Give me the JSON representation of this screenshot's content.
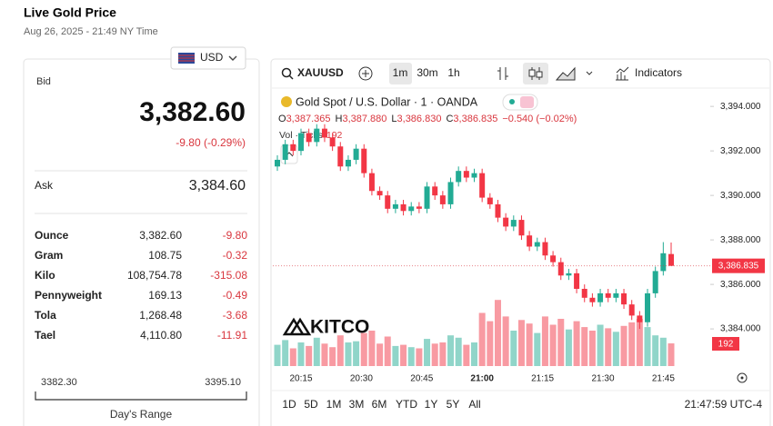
{
  "header": {
    "title": "Live Gold Price",
    "timestamp": "Aug 26, 2025 - 21:49 NY Time"
  },
  "currency": "USD",
  "quote": {
    "bid_label": "Bid",
    "bid": "3,382.60",
    "change": "-9.80 (-0.29%)",
    "ask_label": "Ask",
    "ask": "3,384.60"
  },
  "units": [
    [
      "Ounce",
      "3,382.60",
      "-9.80"
    ],
    [
      "Gram",
      "108.75",
      "-0.32"
    ],
    [
      "Kilo",
      "108,754.78",
      "-315.08"
    ],
    [
      "Pennyweight",
      "169.13",
      "-0.49"
    ],
    [
      "Tola",
      "1,268.48",
      "-3.68"
    ],
    [
      "Tael",
      "4,110.80",
      "-11.91"
    ]
  ],
  "range": {
    "low": "3382.30",
    "high": "3395.10",
    "label": "Day's Range"
  },
  "chart": {
    "symbol": "XAUUSD",
    "intervals": [
      "1m",
      "30m",
      "1h"
    ],
    "indicators": "Indicators",
    "legend": "Gold Spot / U.S. Dollar · 1 · OANDA",
    "ohlc": [
      {
        "key": "O",
        "value": "3,387.365"
      },
      {
        "key": "H",
        "value": "3,387.880"
      },
      {
        "key": "L",
        "value": "3,386.830"
      },
      {
        "key": "C",
        "value": "3,386.835"
      }
    ],
    "change": "−0.540 (−0.02%)",
    "volume_label": "Vol · Ticks",
    "volume_value": "192",
    "logo": "KITCO",
    "ylim": [
      3383.0,
      3394.7
    ],
    "yticks": [
      {
        "value": 3394,
        "label": "3,394.000"
      },
      {
        "value": 3392,
        "label": "3,392.000"
      },
      {
        "value": 3390,
        "label": "3,390.000"
      },
      {
        "value": 3388,
        "label": "3,388.000"
      },
      {
        "value": 3386,
        "label": "3,386.000"
      },
      {
        "value": 3384,
        "label": "3,384.000"
      }
    ],
    "price_tag": "3,386.835",
    "volume_tag": "192",
    "time_labels": [
      "20:15",
      "20:30",
      "20:45",
      "21:00",
      "21:15",
      "21:30",
      "21:45"
    ],
    "candles": [
      [
        3391.3,
        3391.8,
        3391.1,
        3391.6
      ],
      [
        3391.6,
        3392.5,
        3391.4,
        3392.3
      ],
      [
        3392.3,
        3392.5,
        3391.8,
        3392.0
      ],
      [
        3392.0,
        3393.0,
        3391.8,
        3392.8
      ],
      [
        3392.8,
        3393.0,
        3392.2,
        3392.4
      ],
      [
        3392.4,
        3393.2,
        3392.2,
        3393.0
      ],
      [
        3393.0,
        3393.2,
        3392.4,
        3392.6
      ],
      [
        3392.6,
        3392.8,
        3392.0,
        3392.2
      ],
      [
        3392.2,
        3392.4,
        3391.1,
        3391.3
      ],
      [
        3391.3,
        3391.8,
        3391.1,
        3391.6
      ],
      [
        3391.6,
        3392.3,
        3391.4,
        3392.1
      ],
      [
        3392.1,
        3392.3,
        3390.8,
        3391.0
      ],
      [
        3391.0,
        3391.2,
        3390.0,
        3390.2
      ],
      [
        3390.2,
        3390.4,
        3389.8,
        3390.0
      ],
      [
        3390.0,
        3390.2,
        3389.2,
        3389.4
      ],
      [
        3389.4,
        3389.8,
        3389.2,
        3389.6
      ],
      [
        3389.6,
        3389.8,
        3389.1,
        3389.3
      ],
      [
        3389.3,
        3389.7,
        3389.1,
        3389.5
      ],
      [
        3389.5,
        3389.7,
        3389.2,
        3389.4
      ],
      [
        3389.4,
        3390.6,
        3389.2,
        3390.4
      ],
      [
        3390.4,
        3390.6,
        3389.8,
        3390.0
      ],
      [
        3390.0,
        3390.2,
        3389.4,
        3389.6
      ],
      [
        3389.6,
        3390.8,
        3389.4,
        3390.6
      ],
      [
        3390.6,
        3391.3,
        3390.4,
        3391.1
      ],
      [
        3391.1,
        3391.3,
        3390.6,
        3390.8
      ],
      [
        3390.8,
        3391.2,
        3390.6,
        3391.0
      ],
      [
        3391.0,
        3391.2,
        3389.7,
        3389.9
      ],
      [
        3389.9,
        3390.1,
        3389.4,
        3389.6
      ],
      [
        3389.6,
        3389.8,
        3388.8,
        3389.0
      ],
      [
        3389.0,
        3389.2,
        3388.4,
        3388.6
      ],
      [
        3388.6,
        3389.1,
        3388.4,
        3388.9
      ],
      [
        3388.9,
        3389.1,
        3388.0,
        3388.2
      ],
      [
        3388.2,
        3388.4,
        3387.5,
        3387.7
      ],
      [
        3387.7,
        3388.1,
        3387.5,
        3387.9
      ],
      [
        3387.9,
        3388.1,
        3387.1,
        3387.3
      ],
      [
        3387.3,
        3387.5,
        3386.8,
        3387.0
      ],
      [
        3387.0,
        3387.2,
        3386.2,
        3386.4
      ],
      [
        3386.4,
        3386.7,
        3386.2,
        3386.5
      ],
      [
        3386.5,
        3386.7,
        3385.6,
        3385.8
      ],
      [
        3385.8,
        3386.0,
        3385.2,
        3385.4
      ],
      [
        3385.4,
        3385.6,
        3385.0,
        3385.2
      ],
      [
        3385.2,
        3385.8,
        3385.0,
        3385.6
      ],
      [
        3385.6,
        3385.8,
        3385.2,
        3385.4
      ],
      [
        3385.4,
        3385.8,
        3385.2,
        3385.6
      ],
      [
        3385.6,
        3385.8,
        3384.9,
        3385.1
      ],
      [
        3385.1,
        3385.3,
        3384.4,
        3384.6
      ],
      [
        3384.6,
        3384.8,
        3384.0,
        3384.3
      ],
      [
        3384.3,
        3385.8,
        3384.1,
        3385.6
      ],
      [
        3385.6,
        3386.8,
        3385.4,
        3386.6
      ],
      [
        3386.6,
        3387.9,
        3386.4,
        3387.4
      ],
      [
        3387.365,
        3387.88,
        3386.83,
        3386.835
      ]
    ],
    "volumes": [
      180,
      220,
      150,
      200,
      170,
      240,
      190,
      160,
      260,
      200,
      210,
      280,
      300,
      190,
      250,
      170,
      180,
      160,
      150,
      230,
      190,
      200,
      260,
      240,
      180,
      200,
      450,
      380,
      560,
      420,
      300,
      390,
      360,
      280,
      420,
      350,
      400,
      310,
      380,
      330,
      300,
      350,
      320,
      290,
      340,
      370,
      400,
      330,
      260,
      240,
      192
    ],
    "up_color": "#22ab94",
    "down_color": "#f23645",
    "ranges": [
      "1D",
      "5D",
      "1M",
      "3M",
      "6M",
      "YTD",
      "1Y",
      "5Y",
      "All"
    ],
    "clock": "21:47:59 UTC-4"
  }
}
